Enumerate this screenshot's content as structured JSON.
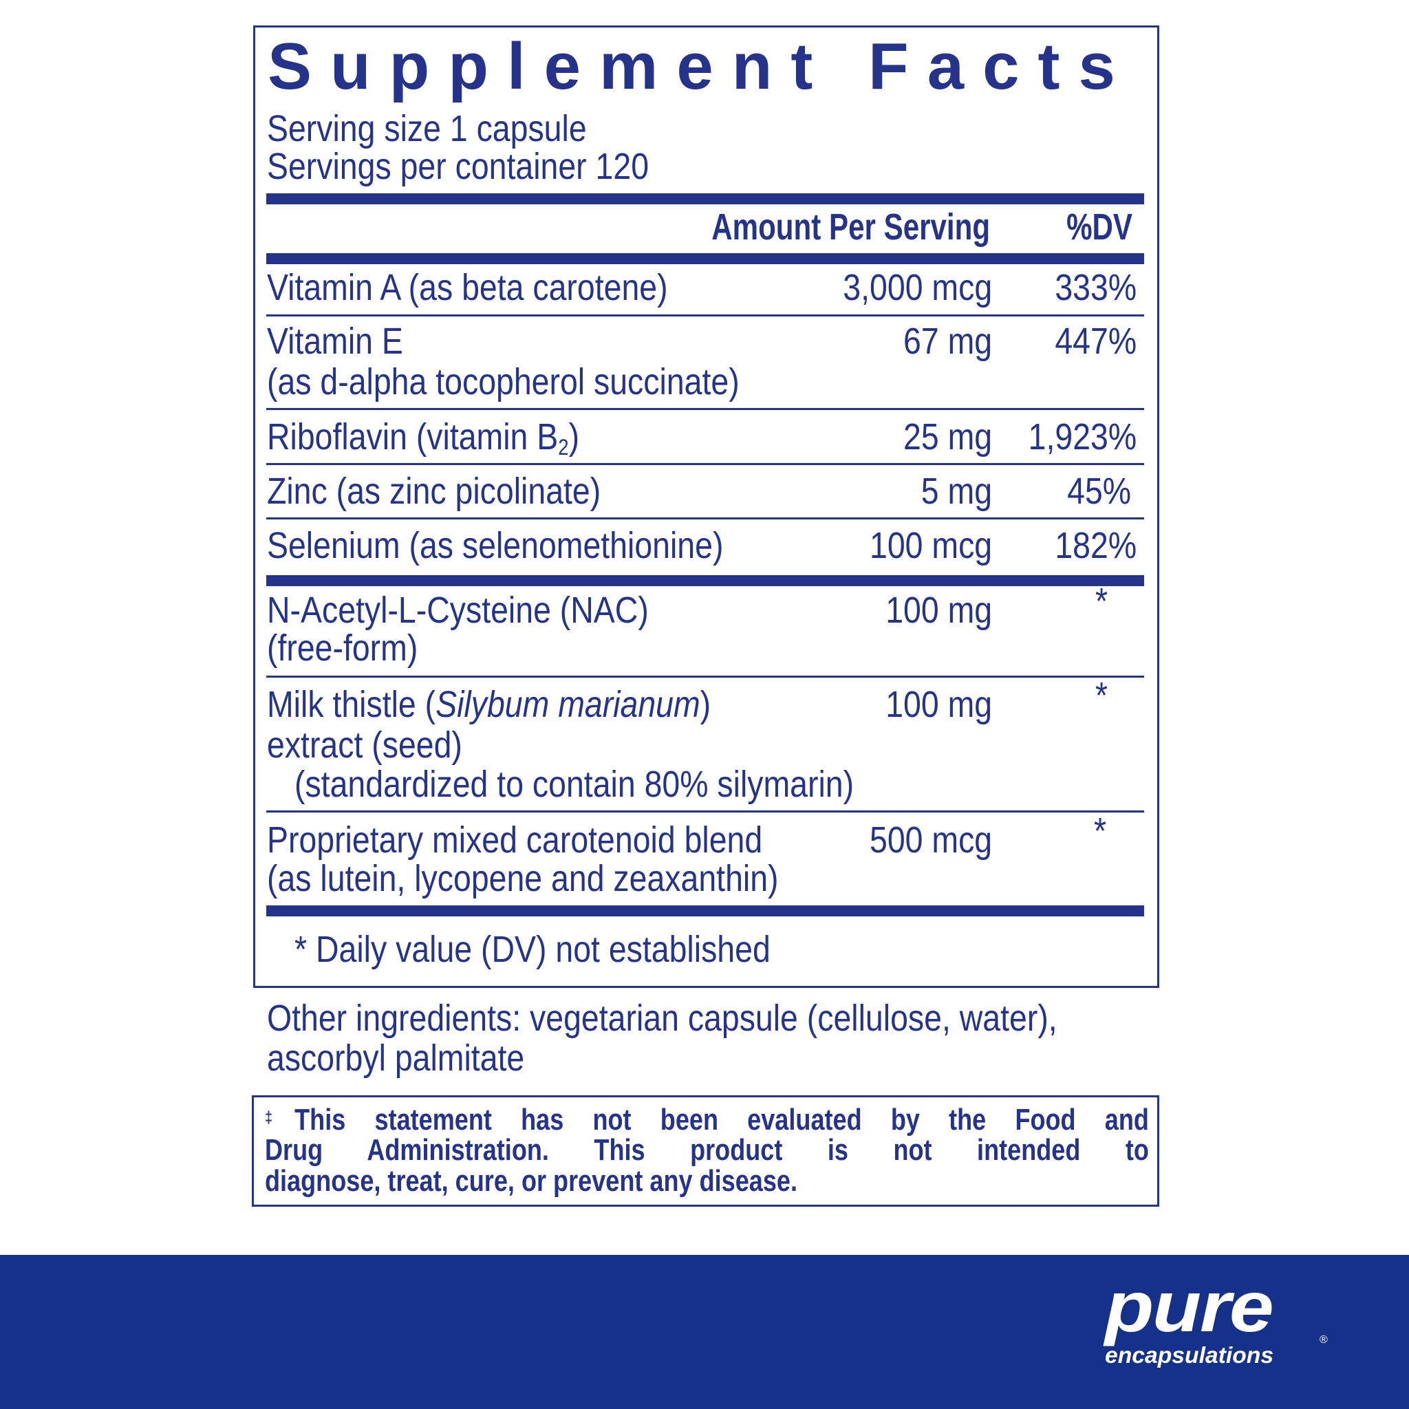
{
  "title": "Supplement Facts",
  "serving_size": "Serving size  1 capsule",
  "servings_per_container": "Servings per container  120",
  "header": {
    "amount": "Amount Per Serving",
    "dv": "%DV"
  },
  "rows": [
    {
      "lines": [
        [
          "Vitamin A (as beta carotene)"
        ]
      ],
      "amount": "3,000 mcg",
      "dv": "333%"
    },
    {
      "lines": [
        [
          "Vitamin E"
        ],
        [
          "(as d-alpha tocopherol succinate)"
        ]
      ],
      "amount": "67 mg",
      "dv": "447%"
    },
    {
      "lines": [
        [
          "Riboflavin (vitamin B",
          "2",
          ")"
        ]
      ],
      "amount": "25 mg",
      "dv": "1,923%"
    },
    {
      "lines": [
        [
          "Zinc (as zinc picolinate)"
        ]
      ],
      "amount": "5 mg",
      "dv": "45%"
    },
    {
      "lines": [
        [
          "Selenium (as selenomethionine)"
        ]
      ],
      "amount": "100 mcg",
      "dv": "182%"
    },
    {
      "lines": [
        [
          "N-Acetyl-L-Cysteine (NAC)"
        ],
        [
          "(free-form)"
        ]
      ],
      "amount": "100 mg",
      "dv": "*"
    },
    {
      "lines": [
        [
          "Milk thistle (",
          "Silybum marianum",
          ")"
        ],
        [
          "extract (seed)"
        ],
        [
          "(standardized to contain 80% silymarin)"
        ]
      ],
      "amount": "100 mg",
      "dv": "*"
    },
    {
      "lines": [
        [
          "Proprietary mixed carotenoid blend"
        ],
        [
          "(as lutein, lycopene and zeaxanthin)"
        ]
      ],
      "amount": "500 mcg",
      "dv": "*"
    }
  ],
  "footnote": "* Daily value (DV) not established",
  "other_ingredients": [
    "Other ingredients: vegetarian capsule (cellulose, water),",
    "ascorbyl palmitate"
  ],
  "disclaimer": [
    [
      "‡",
      "This statement has not been evaluated by the Food and"
    ],
    "Drug Administration. This product is not intended to",
    "diagnose, treat, cure, or prevent any disease."
  ],
  "logo": {
    "brand": "pure",
    "sub": "encapsulations",
    "mark": "®"
  }
}
